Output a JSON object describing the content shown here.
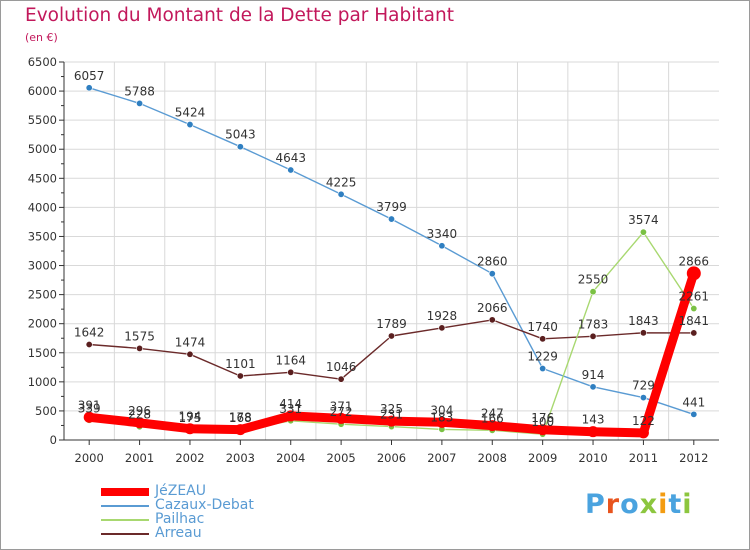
{
  "header": {
    "title": "Evolution du Montant de la Dette par Habitant",
    "subtitle": "(en €)"
  },
  "logo": {
    "text": "Proxiti",
    "letter_colors": [
      "#4aa3df",
      "#e8541e",
      "#4aa3df",
      "#8cc63f",
      "#f39c12",
      "#4aa3df",
      "#8cc63f"
    ]
  },
  "colors": {
    "accent": "#c2185b",
    "axis": "#333333",
    "grid": "#d9d9d9"
  },
  "chart_data": {
    "type": "line",
    "title": "Evolution du Montant de la Dette par Habitant",
    "subtitle": "(en €)",
    "xlabel": "",
    "ylabel": "",
    "x": [
      "2000",
      "2001",
      "2002",
      "2003",
      "2004",
      "2005",
      "2006",
      "2007",
      "2008",
      "2009",
      "2010",
      "2011",
      "2012"
    ],
    "y_ticks": [
      0,
      500,
      1000,
      1500,
      2000,
      2500,
      3000,
      3500,
      4000,
      4500,
      5000,
      5500,
      6000,
      6500
    ],
    "ylim": [
      0,
      6500
    ],
    "grid": true,
    "legend_position": "bottom-left",
    "series": [
      {
        "name": "JéZEAU",
        "color": "#ff0000",
        "marker_color": "#ff0000",
        "values": [
          391,
          296,
          194,
          178,
          414,
          371,
          325,
          304,
          247,
          176,
          143,
          122,
          2866
        ],
        "labels": [
          "391",
          "296",
          "194",
          "178",
          "414",
          "371",
          "325",
          "304",
          "247",
          "176",
          "143",
          "122",
          "2866"
        ]
      },
      {
        "name": "Cazaux-Debat",
        "color": "#5a9bd3",
        "marker_color": "#2f7fc1",
        "values": [
          6057,
          5788,
          5424,
          5043,
          4643,
          4225,
          3799,
          3340,
          2860,
          1229,
          914,
          729,
          441
        ],
        "labels": [
          "6057",
          "5788",
          "5424",
          "5043",
          "4643",
          "4225",
          "3799",
          "3340",
          "2860",
          "1229",
          "914",
          "729",
          "441"
        ]
      },
      {
        "name": "Pailhac",
        "color": "#a8d870",
        "marker_color": "#7ac143",
        "values": [
          339,
          228,
          175,
          168,
          331,
          272,
          231,
          183,
          166,
          100,
          2550,
          3574,
          2261
        ],
        "labels": [
          "339",
          "228",
          "175",
          "168",
          "331",
          "272",
          "231",
          "183",
          "166",
          "100",
          "2550",
          "3574",
          "2261"
        ]
      },
      {
        "name": "Arreau",
        "color": "#6b2a2a",
        "marker_color": "#5a1f1f",
        "values": [
          1642,
          1575,
          1474,
          1101,
          1164,
          1046,
          1789,
          1928,
          2066,
          1740,
          1783,
          1843,
          1841
        ],
        "labels": [
          "1642",
          "1575",
          "1474",
          "1101",
          "1164",
          "1046",
          "1789",
          "1928",
          "2066",
          "1740",
          "1783",
          "1843",
          "1841"
        ]
      }
    ]
  }
}
